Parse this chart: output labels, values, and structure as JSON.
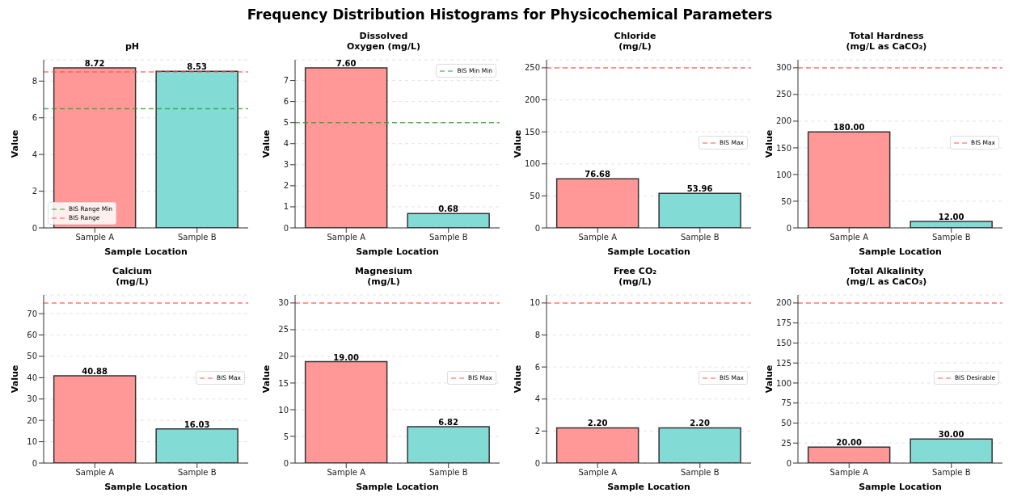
{
  "chart_data": [
    {
      "type": "other",
      "title": "Frequency Distribution Histograms for Physicochemical Parameters"
    },
    {
      "type": "bar",
      "title": "pH",
      "xlabel": "Sample Location",
      "ylabel": "Value",
      "categories": [
        "Sample A",
        "Sample B"
      ],
      "values": [
        8.72,
        8.53
      ],
      "colors": [
        "#ff9896",
        "#83dbd6"
      ],
      "value_labels": [
        "8.72",
        "8.53"
      ],
      "ylim": [
        0,
        9.16
      ],
      "yticks": [
        0,
        2,
        4,
        6,
        8
      ],
      "grid": "y",
      "legend": "bottom left",
      "ref_lines": [
        {
          "axis": "y",
          "value": 6.5,
          "label": "BIS Range Min",
          "color": "#2ca02c",
          "line_style": "dashed"
        },
        {
          "axis": "y",
          "value": 8.5,
          "label": "BIS Range",
          "color": "#ff5555",
          "line_style": "dashed"
        }
      ]
    },
    {
      "type": "bar",
      "title": "Dissolved\nOxygen (mg/L)",
      "xlabel": "Sample Location",
      "ylabel": "Value",
      "categories": [
        "Sample A",
        "Sample B"
      ],
      "values": [
        7.6,
        0.68
      ],
      "colors": [
        "#ff9896",
        "#83dbd6"
      ],
      "value_labels": [
        "7.60",
        "0.68"
      ],
      "ylim": [
        0,
        7.98
      ],
      "yticks": [
        0,
        1,
        2,
        3,
        4,
        5,
        6,
        7
      ],
      "grid": "y",
      "legend": "top right",
      "ref_lines": [
        {
          "axis": "y",
          "value": 5,
          "label": "BIS Min Min",
          "color": "#2ca02c",
          "line_style": "dashed"
        }
      ]
    },
    {
      "type": "bar",
      "title": "Chloride\n(mg/L)",
      "xlabel": "Sample Location",
      "ylabel": "Value",
      "categories": [
        "Sample A",
        "Sample B"
      ],
      "values": [
        76.68,
        53.96
      ],
      "colors": [
        "#ff9896",
        "#83dbd6"
      ],
      "value_labels": [
        "76.68",
        "53.96"
      ],
      "ylim": [
        0,
        262.5
      ],
      "yticks": [
        0,
        50,
        100,
        150,
        200,
        250
      ],
      "grid": "y",
      "legend": "right",
      "ref_lines": [
        {
          "axis": "y",
          "value": 250,
          "label": "BIS Max",
          "color": "#ff5555",
          "line_style": "dashed"
        }
      ]
    },
    {
      "type": "bar",
      "title": "Total Hardness\n(mg/L as CaCO₃)",
      "xlabel": "Sample Location",
      "ylabel": "Value",
      "categories": [
        "Sample A",
        "Sample B"
      ],
      "values": [
        180,
        12
      ],
      "colors": [
        "#ff9896",
        "#83dbd6"
      ],
      "value_labels": [
        "180.00",
        "12.00"
      ],
      "ylim": [
        0,
        315
      ],
      "yticks": [
        0,
        50,
        100,
        150,
        200,
        250,
        300
      ],
      "grid": "y",
      "legend": "right",
      "ref_lines": [
        {
          "axis": "y",
          "value": 300,
          "label": "BIS Max",
          "color": "#ff5555",
          "line_style": "dashed"
        }
      ]
    },
    {
      "type": "bar",
      "title": "Calcium\n(mg/L)",
      "xlabel": "Sample Location",
      "ylabel": "Value",
      "categories": [
        "Sample A",
        "Sample B"
      ],
      "values": [
        40.88,
        16.03
      ],
      "colors": [
        "#ff9896",
        "#83dbd6"
      ],
      "value_labels": [
        "40.88",
        "16.03"
      ],
      "ylim": [
        0,
        78.75
      ],
      "yticks": [
        0,
        10,
        20,
        30,
        40,
        50,
        60,
        70
      ],
      "grid": "y",
      "legend": "right",
      "ref_lines": [
        {
          "axis": "y",
          "value": 75,
          "label": "BIS Max",
          "color": "#ff5555",
          "line_style": "dashed"
        }
      ]
    },
    {
      "type": "bar",
      "title": "Magnesium\n(mg/L)",
      "xlabel": "Sample Location",
      "ylabel": "Value",
      "categories": [
        "Sample A",
        "Sample B"
      ],
      "values": [
        19,
        6.82
      ],
      "colors": [
        "#ff9896",
        "#83dbd6"
      ],
      "value_labels": [
        "19.00",
        "6.82"
      ],
      "ylim": [
        0,
        31.5
      ],
      "yticks": [
        0,
        5,
        10,
        15,
        20,
        25,
        30
      ],
      "grid": "y",
      "legend": "right",
      "ref_lines": [
        {
          "axis": "y",
          "value": 30,
          "label": "BIS Max",
          "color": "#ff5555",
          "line_style": "dashed"
        }
      ]
    },
    {
      "type": "bar",
      "title": "Free CO₂\n(mg/L)",
      "xlabel": "Sample Location",
      "ylabel": "Value",
      "categories": [
        "Sample A",
        "Sample B"
      ],
      "values": [
        2.2,
        2.2
      ],
      "colors": [
        "#ff9896",
        "#83dbd6"
      ],
      "value_labels": [
        "2.20",
        "2.20"
      ],
      "ylim": [
        0,
        10.5
      ],
      "yticks": [
        0,
        2,
        4,
        6,
        8,
        10
      ],
      "grid": "y",
      "legend": "right",
      "ref_lines": [
        {
          "axis": "y",
          "value": 10,
          "label": "BIS Max",
          "color": "#ff5555",
          "line_style": "dashed"
        }
      ]
    },
    {
      "type": "bar",
      "title": "Total Alkalinity\n(mg/L as CaCO₃)",
      "xlabel": "Sample Location",
      "ylabel": "Value",
      "categories": [
        "Sample A",
        "Sample B"
      ],
      "values": [
        20,
        30
      ],
      "colors": [
        "#ff9896",
        "#83dbd6"
      ],
      "value_labels": [
        "20.00",
        "30.00"
      ],
      "ylim": [
        0,
        210
      ],
      "yticks": [
        0,
        25,
        50,
        75,
        100,
        125,
        150,
        175,
        200
      ],
      "grid": "y",
      "legend": "right",
      "ref_lines": [
        {
          "axis": "y",
          "value": 200,
          "label": "BIS Desirable",
          "color": "#ff5555",
          "line_style": "dashed"
        }
      ]
    }
  ]
}
